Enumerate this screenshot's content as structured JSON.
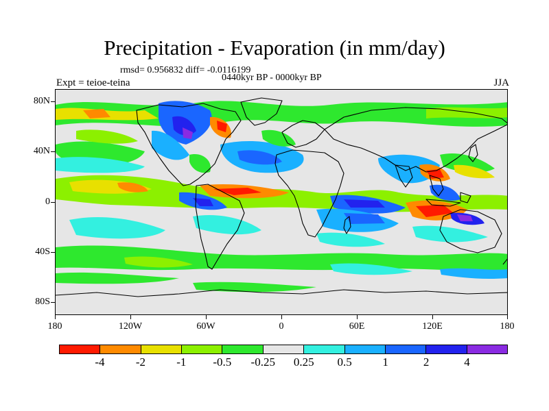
{
  "map": {
    "title": "Precipitation - Evaporation (in mm/day)",
    "stats": "rmsd= 0.956832 diff= -0.0116199",
    "period": "0440kyr BP - 0000kyr BP",
    "experiment": "Expt = teioe-teina",
    "season": "JJA",
    "lat_labels": [
      "80N",
      "40N",
      "0",
      "40S",
      "80S"
    ],
    "lon_labels": [
      "180",
      "120W",
      "60W",
      "0",
      "60E",
      "120E",
      "180"
    ],
    "colorbar": {
      "labels": [
        "-4",
        "-2",
        "-1",
        "-0.5",
        "-0.25",
        "0.25",
        "0.5",
        "1",
        "2",
        "4"
      ],
      "colors": [
        "#ff1a00",
        "#ff8a00",
        "#e8e000",
        "#8cf000",
        "#2ee82e",
        "#e6e6e6",
        "#33f0e0",
        "#1ab0ff",
        "#1a66ff",
        "#2222ee",
        "#8a2be2"
      ]
    }
  }
}
